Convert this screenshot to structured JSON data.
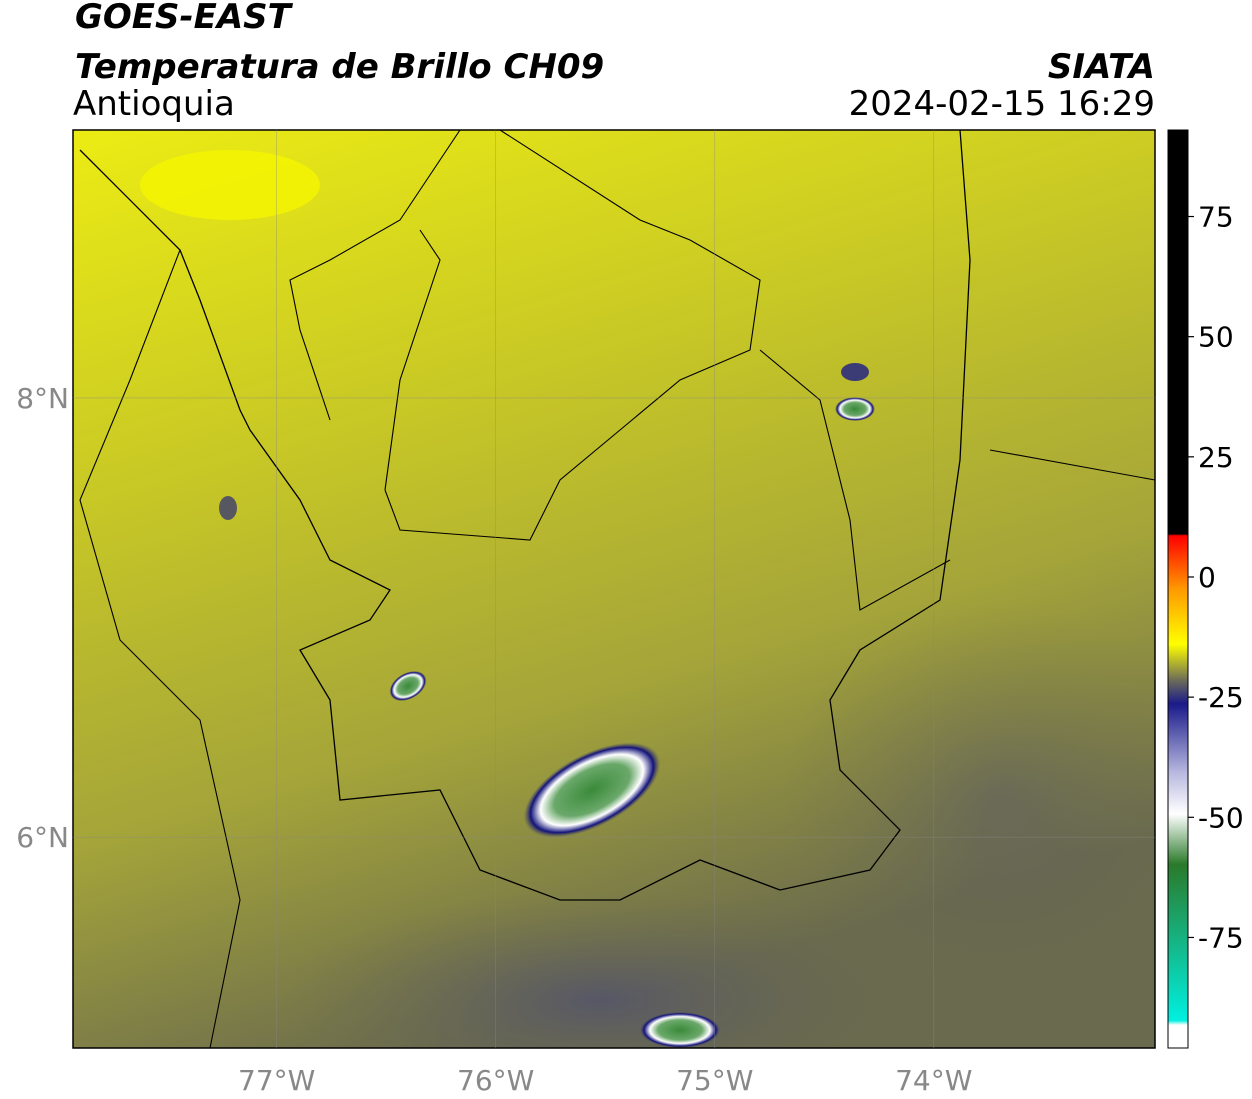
{
  "header": {
    "title": "GOES-EAST",
    "subtitle": "Temperatura de Brillo CH09",
    "region": "Antioquia",
    "source": "SIATA",
    "datetime": "2024-02-15 16:29"
  },
  "map": {
    "xlim": [
      -77.93,
      -72.99
    ],
    "ylim": [
      5.04,
      9.22
    ],
    "xticks": [
      {
        "value": -77,
        "label": "77°W"
      },
      {
        "value": -76,
        "label": "76°W"
      },
      {
        "value": -75,
        "label": "75°W"
      },
      {
        "value": -74,
        "label": "74°W"
      }
    ],
    "yticks": [
      {
        "value": 6,
        "label": "6°N"
      },
      {
        "value": 8,
        "label": "8°N"
      }
    ]
  },
  "colorbar": {
    "lim": [
      -98,
      93
    ],
    "ticks": [
      -75,
      -50,
      -25,
      0,
      25,
      50,
      75
    ]
  }
}
